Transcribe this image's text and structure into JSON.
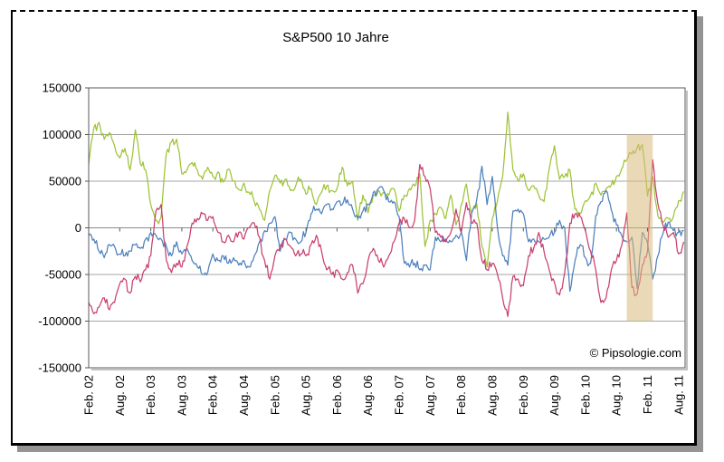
{
  "chart": {
    "title": "S&P500 10 Jahre",
    "copyright": "© Pipsologie.com"
  },
  "chart_data": {
    "type": "line",
    "title": "S&P500 10 Jahre",
    "grid": true,
    "legend": "none",
    "x_unit": "month",
    "x_tick_every_months": 6,
    "x_tick_labels": [
      "Feb. 02",
      "Aug. 02",
      "Feb. 03",
      "Aug. 03",
      "Feb. 04",
      "Aug. 04",
      "Feb. 05",
      "Aug. 05",
      "Feb. 06",
      "Aug. 06",
      "Feb. 07",
      "Aug. 07",
      "Feb. 08",
      "Aug. 08",
      "Feb. 09",
      "Aug. 09",
      "Feb. 10",
      "Aug. 10",
      "Feb. 11",
      "Aug. 11"
    ],
    "ylim": [
      -150000,
      150000
    ],
    "y_tick_step": 50000,
    "y_tick_labels": [
      "150000",
      "100000",
      "50000",
      "0",
      "-50000",
      "-100000",
      "-150000"
    ],
    "noise_amplitude": 6000,
    "highlight_band": {
      "from_month_index": 104,
      "to_month_index": 109,
      "y_from": -100000,
      "y_to": 100000,
      "color": "#D9BA7C",
      "opacity": 0.55
    },
    "series": [
      {
        "name": "green-series",
        "color": "#9EC338",
        "values": [
          68000,
          107000,
          113000,
          95000,
          102000,
          88000,
          75000,
          85000,
          62000,
          105000,
          68000,
          62000,
          25000,
          8000,
          12000,
          80000,
          92000,
          95000,
          58000,
          62000,
          70000,
          62000,
          52000,
          65000,
          55000,
          60000,
          49000,
          63000,
          50000,
          41000,
          48000,
          38000,
          28000,
          20000,
          8000,
          40000,
          56000,
          48000,
          52000,
          40000,
          45000,
          52000,
          36000,
          42000,
          25000,
          38000,
          45000,
          40000,
          42000,
          65000,
          45000,
          50000,
          8000,
          35000,
          16000,
          35000,
          40000,
          38000,
          35000,
          42000,
          18000,
          35000,
          42000,
          45000,
          58000,
          -20000,
          8000,
          15000,
          22000,
          10000,
          35000,
          3000,
          25000,
          47000,
          16000,
          26000,
          -20000,
          -42000,
          10000,
          29000,
          55000,
          124000,
          62000,
          50000,
          58000,
          40000,
          45000,
          35000,
          28000,
          63000,
          88000,
          52000,
          55000,
          62000,
          20000,
          15000,
          29000,
          35000,
          48000,
          35000,
          42000,
          46000,
          55000,
          63000,
          73000,
          79000,
          86000,
          89000,
          34000,
          55000,
          13000,
          6000,
          10000,
          12000,
          29000,
          39000
        ]
      },
      {
        "name": "blue-series",
        "color": "#4E81BD",
        "values": [
          -8000,
          -12000,
          -25000,
          -32000,
          -18000,
          -20000,
          -28000,
          -30000,
          -25000,
          -18000,
          -22000,
          -12000,
          -5000,
          -8000,
          -12000,
          -20000,
          -30000,
          -15000,
          -28000,
          -22000,
          -35000,
          -42000,
          -50000,
          -48000,
          -28000,
          -35000,
          -30000,
          -38000,
          -32000,
          -40000,
          -35000,
          -42000,
          -30000,
          -15000,
          -3000,
          5000,
          12000,
          -25000,
          -12000,
          -5000,
          -12000,
          -15000,
          -5000,
          15000,
          20000,
          15000,
          25000,
          20000,
          28000,
          25000,
          30000,
          20000,
          10000,
          18000,
          25000,
          38000,
          42000,
          40000,
          28000,
          28000,
          12000,
          -38000,
          -42000,
          -38000,
          -45000,
          -40000,
          -45000,
          -10000,
          -15000,
          -12000,
          -15000,
          -8000,
          -5000,
          -35000,
          15000,
          30000,
          66000,
          25000,
          55000,
          0,
          -30000,
          -40000,
          18000,
          20000,
          15000,
          -15000,
          -12000,
          -15000,
          -12000,
          -10000,
          -5000,
          8000,
          0,
          -68000,
          -35000,
          -18000,
          -32000,
          -38000,
          13000,
          28000,
          40000,
          19000,
          3000,
          -8000,
          -15000,
          -10000,
          -65000,
          -5000,
          -16000,
          -55000,
          -30000,
          -6000,
          6000,
          -3000,
          -5000,
          -3000
        ]
      },
      {
        "name": "pink-series",
        "color": "#C9406F",
        "values": [
          -80000,
          -92000,
          -85000,
          -75000,
          -88000,
          -80000,
          -60000,
          -55000,
          -70000,
          -52000,
          -58000,
          -45000,
          -30000,
          18000,
          25000,
          -35000,
          -48000,
          -38000,
          -42000,
          -20000,
          5000,
          10000,
          15000,
          8000,
          12000,
          -5000,
          -15000,
          -8000,
          -15000,
          -5000,
          -12000,
          0,
          5000,
          -10000,
          -35000,
          -55000,
          -30000,
          -20000,
          -12000,
          -20000,
          -30000,
          -28000,
          -30000,
          -18000,
          -8000,
          -25000,
          -45000,
          -50000,
          -45000,
          -55000,
          -48000,
          -40000,
          -70000,
          -60000,
          -35000,
          -22000,
          -35000,
          -42000,
          -30000,
          -15000,
          5000,
          10000,
          0,
          8000,
          68000,
          55000,
          42000,
          -5000,
          -10000,
          -15000,
          -5000,
          20000,
          -5000,
          27000,
          5000,
          5000,
          -35000,
          -45000,
          -38000,
          -50000,
          -75000,
          -95000,
          -52000,
          -55000,
          -62000,
          -30000,
          -22000,
          -5000,
          -25000,
          -45000,
          -58000,
          -72000,
          -48000,
          5000,
          15000,
          12000,
          -3000,
          -25000,
          -45000,
          -80000,
          -75000,
          -45000,
          -35000,
          -19000,
          16000,
          -64000,
          -71000,
          -40000,
          -25000,
          73000,
          26000,
          3000,
          -10000,
          -5000,
          -28000,
          -15000
        ]
      }
    ]
  }
}
